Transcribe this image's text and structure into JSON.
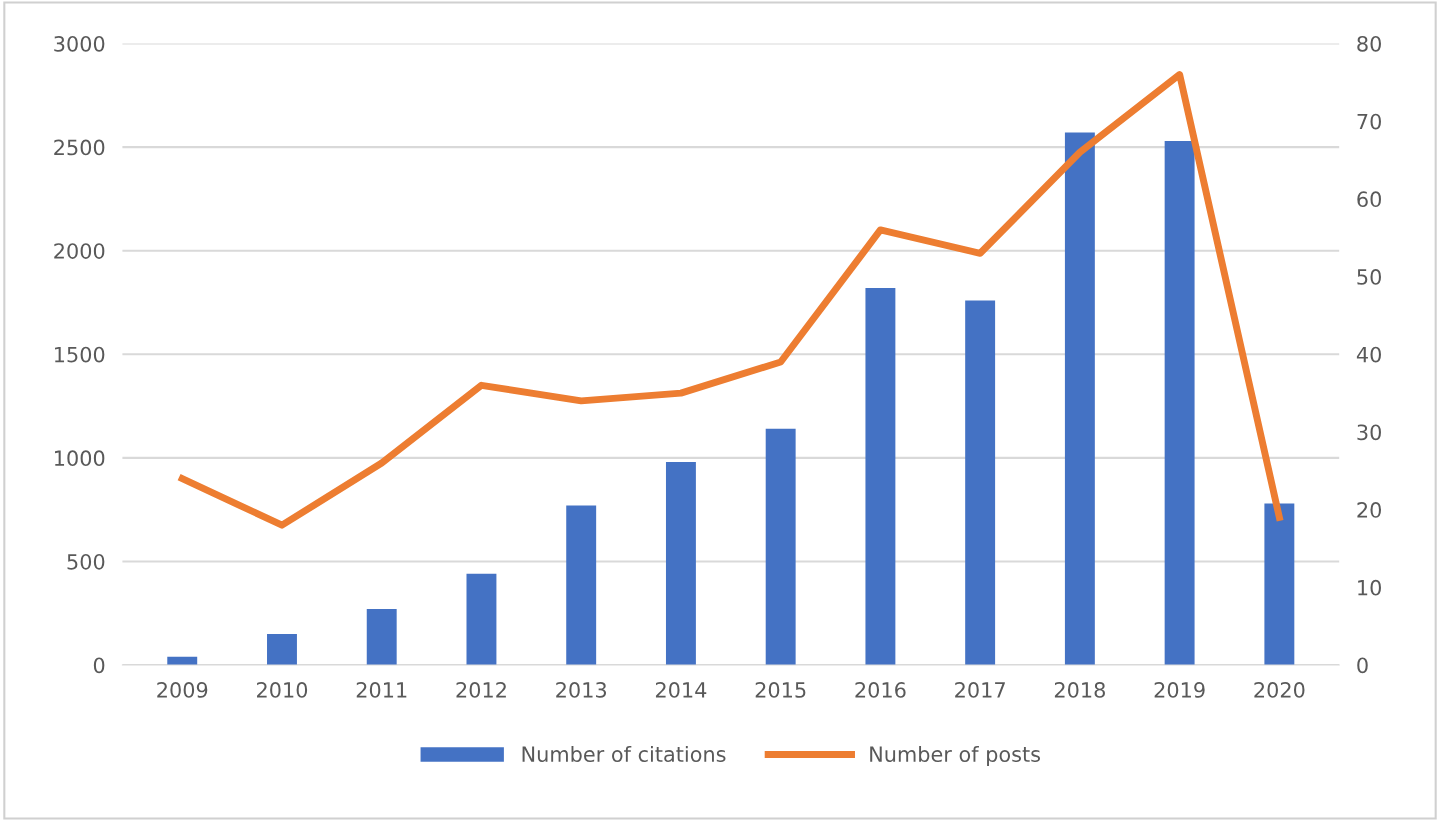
{
  "chart_data": {
    "type": "bar",
    "categories": [
      "2009",
      "2010",
      "2011",
      "2012",
      "2013",
      "2014",
      "2015",
      "2016",
      "2017",
      "2018",
      "2019",
      "2020"
    ],
    "series": [
      {
        "name": "Number of citations",
        "color": "#4472c4",
        "values": [
          40,
          150,
          270,
          440,
          770,
          980,
          1140,
          1820,
          1760,
          2570,
          2530,
          780
        ]
      },
      {
        "name": "Number of posts",
        "color": "#ed7d31",
        "type": "line",
        "axis": "y2",
        "values": [
          24,
          18,
          26,
          36,
          34,
          35,
          39,
          56,
          53,
          66,
          76,
          19
        ]
      }
    ],
    "ylim": [
      0,
      3000
    ],
    "yticks": [
      0,
      500,
      1000,
      1500,
      2000,
      2500,
      3000
    ],
    "y2lim": [
      0,
      80
    ],
    "y2ticks": [
      0,
      10,
      20,
      30,
      40,
      50,
      60,
      70,
      80
    ],
    "grid": "y",
    "legend": "bottom",
    "marker": "none",
    "line_style": "solid"
  }
}
